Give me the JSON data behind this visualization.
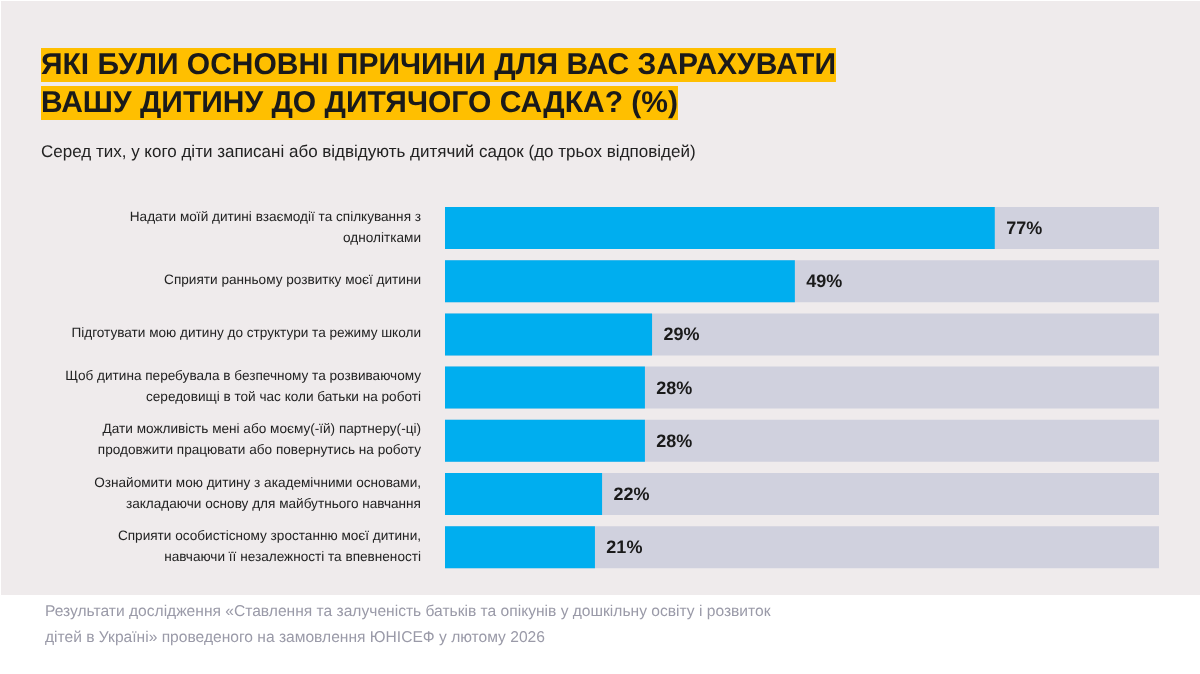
{
  "chart_data": {
    "type": "bar",
    "orientation": "horizontal",
    "title": "ЯКІ БУЛИ ОСНОВНІ ПРИЧИНИ ДЛЯ ВАС ЗАРАХУВАТИ ВАШУ ДИТИНУ ДО ДИТЯЧОГО САДКА? (%)",
    "subtitle": "Серед тих, у кого діти записані або відвідують дитячий садок (до трьох відповідей)",
    "categories": [
      "Надати моїй дитині взаємодії та спілкування з однолітками",
      "Сприяти ранньому розвитку моєї дитини",
      "Підготувати мою дитину до структури та режиму школи",
      "Щоб дитина перебувала в безпечному та розвиваючому середовищі в той час коли батьки на роботі",
      "Дати можливість мені або моєму(-їй) партнеру(-ці) продовжити працювати або повернутись на роботу",
      "Ознайомити мою дитину з академічними основами, закладаючи основу для майбутнього навчання",
      "Сприяти особистісному зростанню моєї дитини, навчаючи її незалежності та впевненості"
    ],
    "values": [
      77,
      49,
      29,
      28,
      28,
      22,
      21
    ],
    "color": "#00aeef",
    "value_labels": [
      "77%",
      "49%",
      "29%",
      "28%",
      "28%",
      "22%",
      "21%"
    ],
    "tick_labels": "y",
    "grid": false,
    "annotations": [
      "Результати дослідження «Ставлення та залученість батьків та опікунів у дошкільну освіту і розвиток дітей в Україні» проведеного на замовлення ЮНІСЕФ у лютому 2026"
    ]
  }
}
